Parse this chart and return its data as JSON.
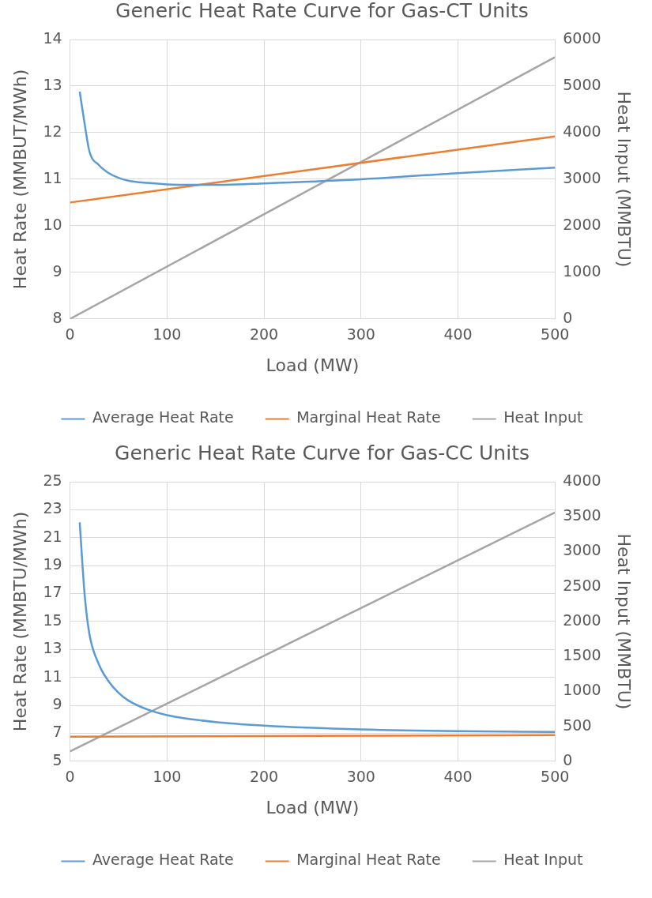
{
  "chart_data": [
    {
      "type": "line",
      "title": "Generic Heat Rate Curve for Gas-CT Units",
      "xlabel": "Load (MW)",
      "ylabel": "Heat Rate (MMBUT/MWh)",
      "y2label": "Heat Input (MMBTU)",
      "xlim": [
        0,
        500
      ],
      "xticks": [
        0,
        100,
        200,
        300,
        400,
        500
      ],
      "ylim": [
        8,
        14
      ],
      "yticks": [
        8,
        9,
        10,
        11,
        12,
        13,
        14
      ],
      "y2lim": [
        0,
        6000
      ],
      "y2ticks": [
        0,
        1000,
        2000,
        3000,
        4000,
        5000,
        6000
      ],
      "grid": true,
      "legend": "bottom",
      "marker": "none",
      "series": [
        {
          "name": "Average Heat Rate",
          "color": "#5b9bd5",
          "x": [
            10,
            15,
            20,
            30,
            40,
            50,
            60,
            80,
            100,
            130,
            160,
            200,
            300,
            400,
            500
          ],
          "values": [
            12.88,
            12.2,
            11.6,
            11.3,
            11.13,
            11.03,
            10.97,
            10.92,
            10.89,
            10.88,
            10.88,
            10.91,
            11.0,
            11.13,
            11.25
          ]
        },
        {
          "name": "Marginal Heat Rate",
          "color": "#ed7d31",
          "x": [
            0,
            500
          ],
          "values": [
            10.5,
            11.92
          ]
        },
        {
          "name": "Heat Input",
          "color": "#a5a5a5",
          "axis": "y2",
          "x": [
            0,
            500
          ],
          "values": [
            0,
            5620
          ]
        }
      ]
    },
    {
      "type": "line",
      "title": "Generic Heat Rate Curve for Gas-CC Units",
      "xlabel": "Load (MW)",
      "ylabel": "Heat Rate (MMBTU/MWh)",
      "y2label": "Heat Input (MMBTU)",
      "xlim": [
        0,
        500
      ],
      "xticks": [
        0,
        100,
        200,
        300,
        400,
        500
      ],
      "ylim": [
        5,
        25
      ],
      "yticks": [
        5,
        7,
        9,
        11,
        13,
        15,
        17,
        19,
        21,
        23,
        25
      ],
      "y2lim": [
        0,
        4000
      ],
      "y2ticks": [
        0,
        500,
        1000,
        1500,
        2000,
        2500,
        3000,
        3500,
        4000
      ],
      "grid": true,
      "legend": "bottom",
      "marker": "none",
      "series": [
        {
          "name": "Average Heat Rate",
          "color": "#5b9bd5",
          "x": [
            10,
            15,
            20,
            30,
            40,
            50,
            60,
            80,
            100,
            150,
            200,
            300,
            400,
            500
          ],
          "values": [
            22.1,
            17.0,
            14.1,
            11.9,
            10.7,
            9.9,
            9.35,
            8.7,
            8.3,
            7.8,
            7.55,
            7.28,
            7.15,
            7.1
          ]
        },
        {
          "name": "Marginal Heat Rate",
          "color": "#ed7d31",
          "x": [
            0,
            500
          ],
          "values": [
            6.75,
            6.87
          ]
        },
        {
          "name": "Heat Input",
          "color": "#a5a5a5",
          "axis": "y2",
          "x": [
            0,
            500
          ],
          "values": [
            140,
            3560
          ]
        }
      ]
    }
  ]
}
